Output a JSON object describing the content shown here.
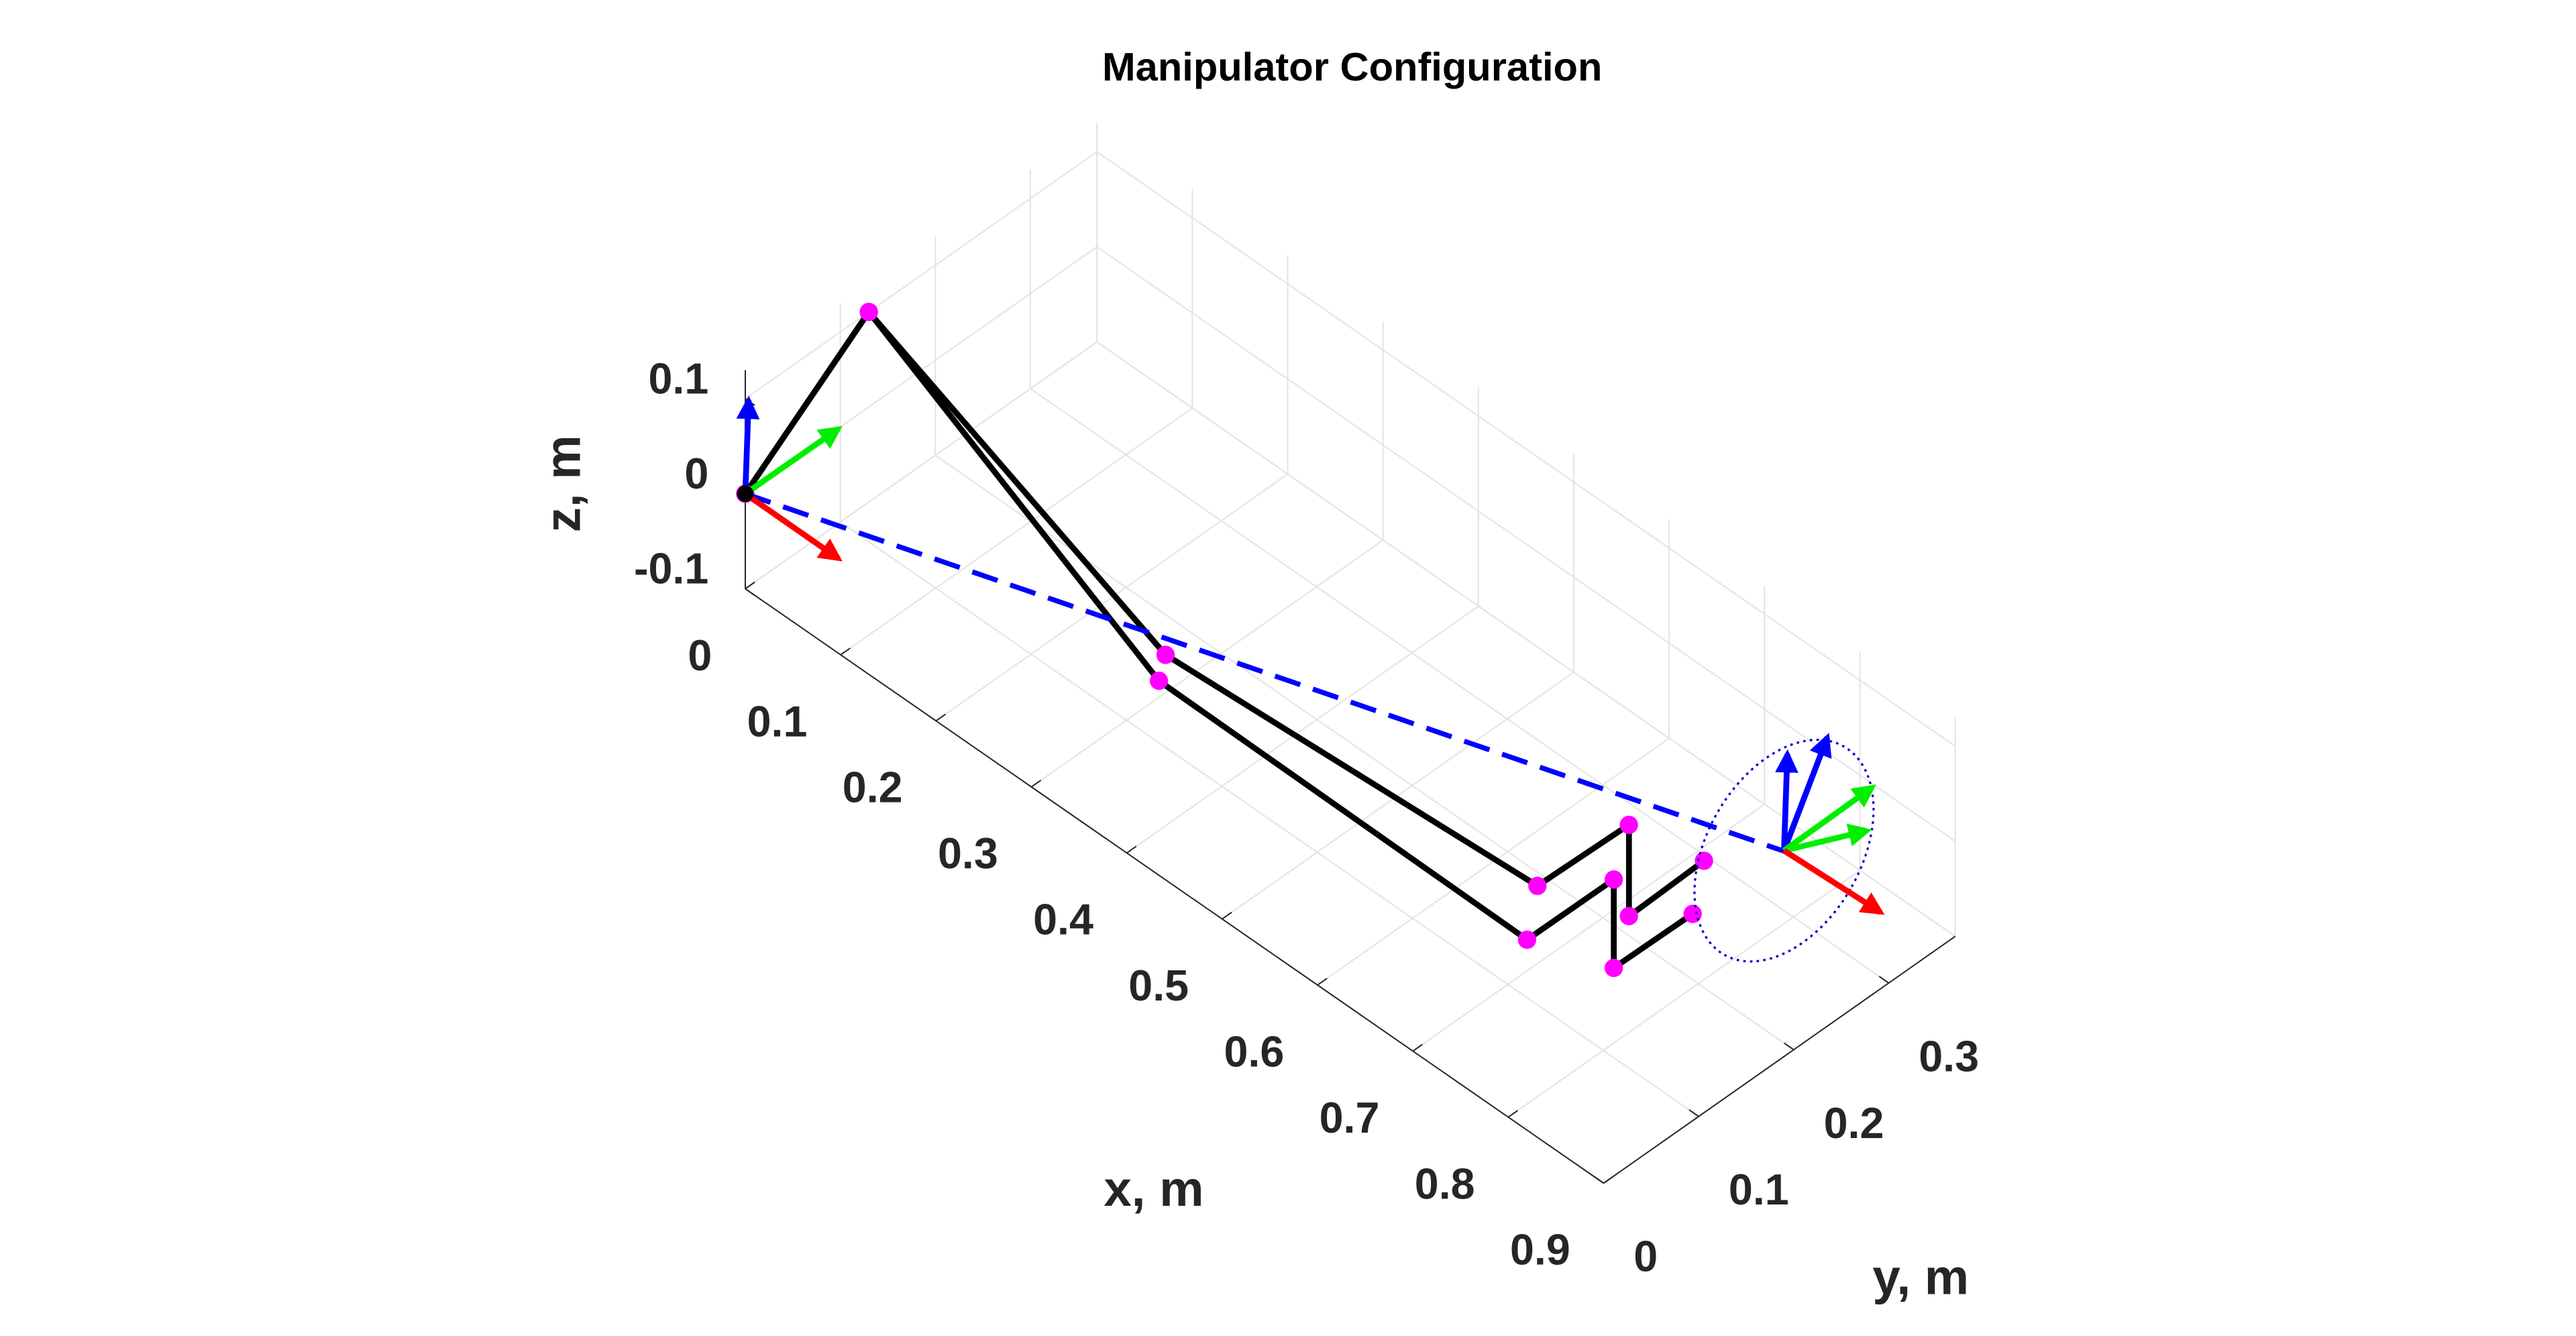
{
  "chart_data": {
    "type": "line3d",
    "title": "Manipulator Configuration",
    "x_label": "x, m",
    "y_label": "y, m",
    "z_label": "z, m",
    "xlim": [
      0,
      0.9
    ],
    "ylim": [
      0,
      0.37
    ],
    "zlim": [
      -0.1,
      0.13
    ],
    "xticks": [
      0,
      0.1,
      0.2,
      0.3,
      0.4,
      0.5,
      0.6,
      0.7,
      0.8,
      0.9
    ],
    "yticks": [
      0,
      0.1,
      0.2,
      0.3
    ],
    "zticks": [
      -0.1,
      0,
      0.1
    ],
    "grid": true,
    "series": [
      {
        "color": "#000000",
        "marker_color": "#ff00ff",
        "line_style": "solid",
        "x": [
          0,
          0,
          0.343,
          0.713,
          0.784,
          0.784,
          0.782
        ],
        "y": [
          0,
          0.13,
          0.098,
          0.118,
          0.143,
          0.143,
          0.224
        ],
        "z": [
          0,
          0.1,
          0,
          0,
          0.096,
          0,
          0
        ]
      },
      {
        "color": "#000000",
        "marker_color": "#ff00ff",
        "line_style": "solid",
        "x": [
          0,
          0,
          0.359,
          0.748,
          0.815,
          0.815,
          0.816
        ],
        "y": [
          0,
          0.13,
          0.075,
          0.072,
          0.096,
          0.096,
          0.178
        ],
        "z": [
          0,
          0.1,
          0,
          0,
          0.093,
          0,
          0
        ]
      },
      {
        "color": "#0000ff",
        "line_style": "dashed",
        "x": [
          0,
          0.817
        ],
        "y": [
          0,
          0.273
        ],
        "z": [
          0,
          0
        ]
      }
    ]
  }
}
